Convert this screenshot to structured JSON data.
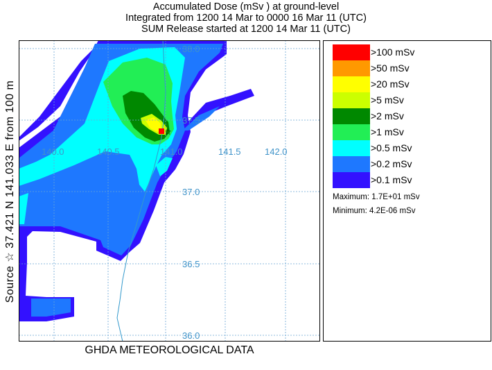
{
  "title": {
    "line1": "Accumulated Dose  (mSv  ) at ground-level",
    "line2": "Integrated from 1200 14 Mar to 0000 16 Mar 11 (UTC)",
    "line3": "SUM  Release started at 1200 14 Mar 11 (UTC)"
  },
  "side_label": "Source ☆  37.421  N 141.033  E     from  100 m",
  "footer": "GHDA METEOROLOGICAL DATA",
  "map": {
    "lon_labels": [
      "140.0",
      "140.5",
      "141.0",
      "141.5",
      "142.0"
    ],
    "lat_labels": [
      "38.0",
      "37.5",
      "37.0",
      "36.5",
      "36.0"
    ],
    "source_marker": "☆"
  },
  "legend": {
    "items": [
      {
        "label": ">100 mSv",
        "color": "#ff0000"
      },
      {
        "label": ">50 mSv",
        "color": "#ff9900"
      },
      {
        "label": ">20 mSv",
        "color": "#ffff00"
      },
      {
        "label": ">5 mSv",
        "color": "#ccff00"
      },
      {
        "label": ">2 mSv",
        "color": "#008800"
      },
      {
        "label": ">1 mSv",
        "color": "#22ee55"
      },
      {
        "label": ">0.5 mSv",
        "color": "#00ffff"
      },
      {
        "label": ">0.2 mSv",
        "color": "#1e78ff"
      },
      {
        "label": ">0.1 mSv",
        "color": "#3311ff"
      }
    ],
    "maximum": "Maximum: 1.7E+01 mSv",
    "minimum": "Minimum: 4.2E-06 mSv"
  }
}
